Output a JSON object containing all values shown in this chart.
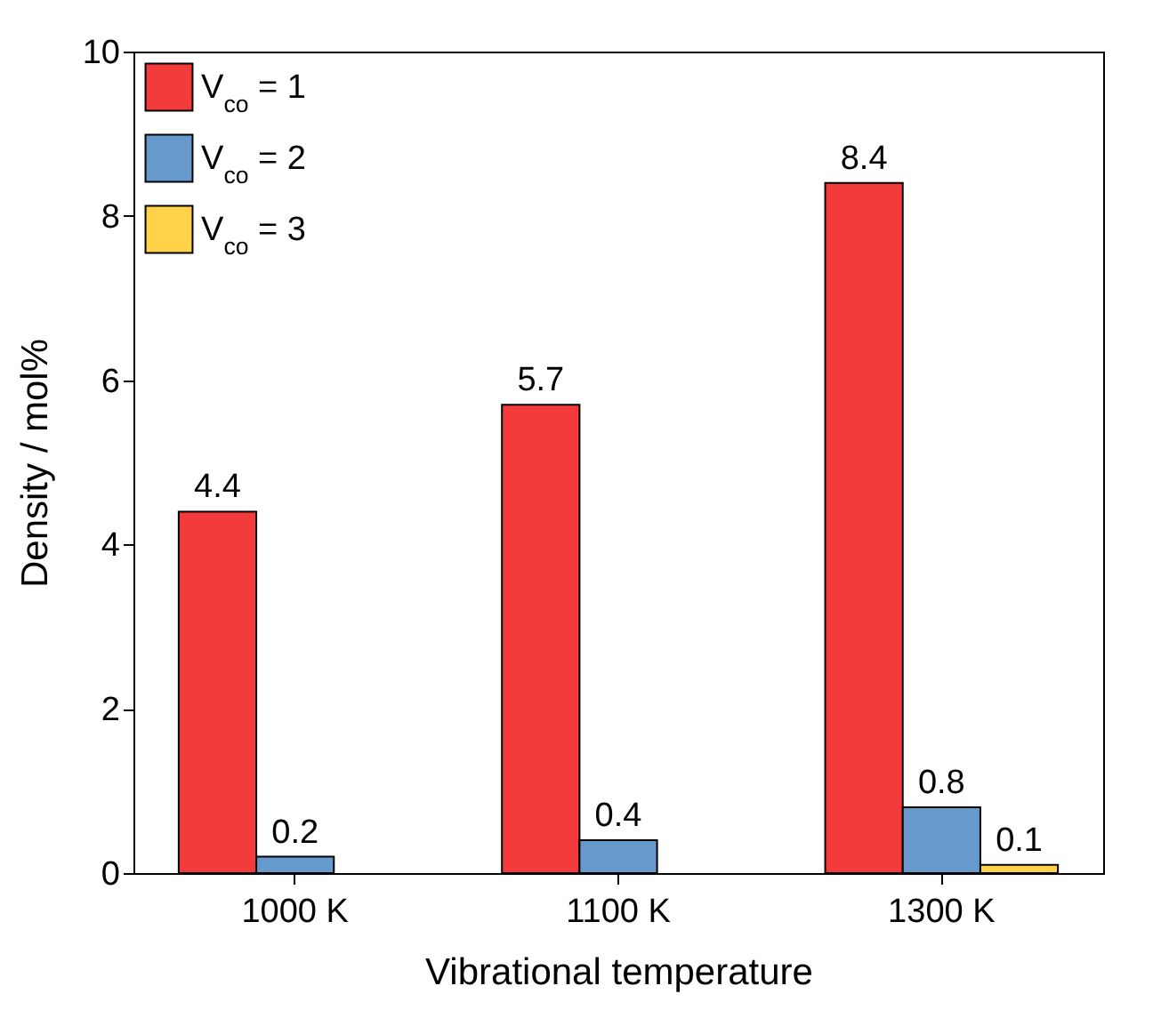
{
  "chart_data": {
    "type": "bar",
    "xlabel": "Vibrational temperature",
    "ylabel": "Density / mol%",
    "categories": [
      "1000 K",
      "1100 K",
      "1300 K"
    ],
    "series": [
      {
        "name": "V$_{co}$ = 1",
        "color": "#f33b3b",
        "values": [
          4.4,
          5.7,
          8.4
        ]
      },
      {
        "name": "V$_{co}$ = 2",
        "color": "#6699cc",
        "values": [
          0.2,
          0.4,
          0.8
        ]
      },
      {
        "name": "V$_{co}$ = 3",
        "color": "#ffd24a",
        "values": [
          null,
          null,
          0.1
        ]
      }
    ],
    "ylim": [
      0,
      10
    ],
    "yticks": [
      0,
      2,
      4,
      6,
      8,
      10
    ],
    "data_labels": true,
    "legend": "top left",
    "grid": false
  }
}
